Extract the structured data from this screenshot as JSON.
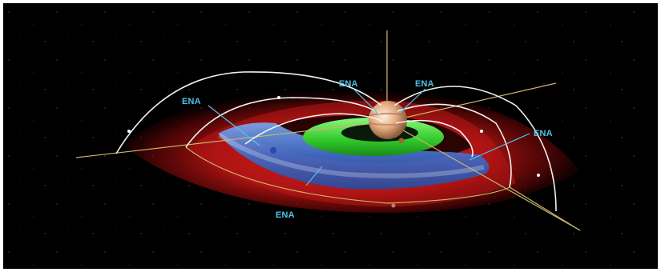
{
  "figure": {
    "labels": [
      {
        "id": "ena-left",
        "text": "ENA"
      },
      {
        "id": "ena-top-left",
        "text": "ENA"
      },
      {
        "id": "ena-top-right",
        "text": "ENA"
      },
      {
        "id": "ena-right",
        "text": "ENA"
      },
      {
        "id": "ena-bottom",
        "text": "ENA"
      }
    ],
    "colors": {
      "background": "#000000",
      "field_lines": "#f2f2f2",
      "axes": "#c9b46a",
      "outer_torus": "#b01818",
      "middle_torus": "#4a78d0",
      "inner_torus": "#38d630",
      "label": "#4fc3e8",
      "planet": "#e0b088"
    }
  }
}
